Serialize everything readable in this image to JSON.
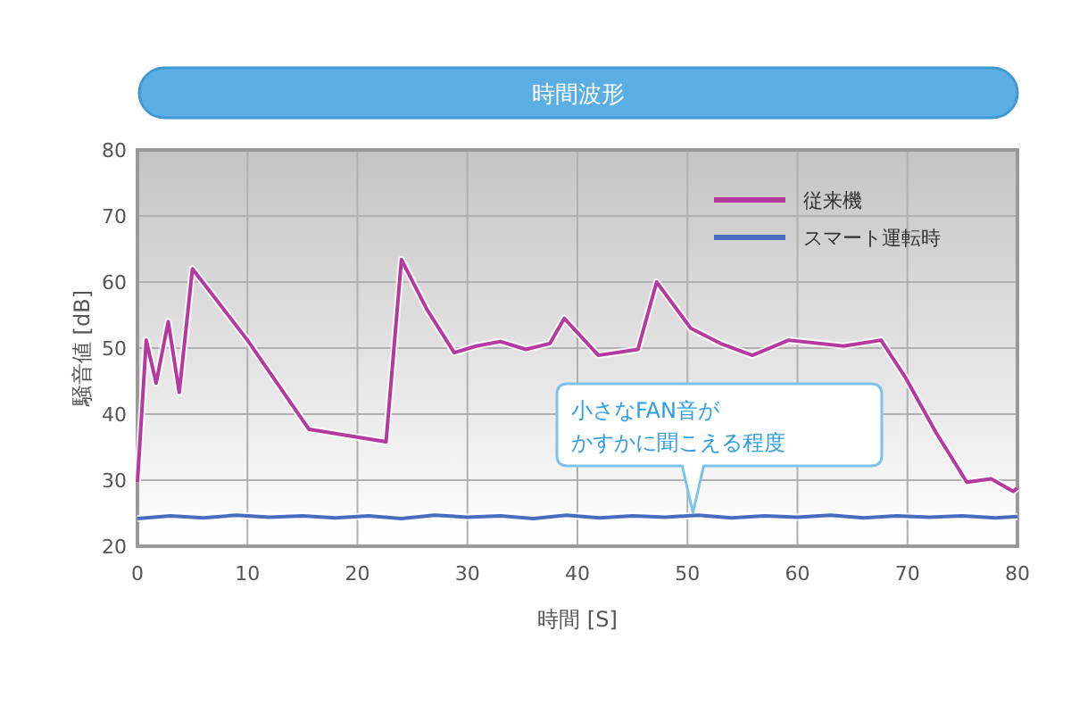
{
  "chart_data": {
    "type": "line",
    "title": "時間波形",
    "xlabel": "時間 [S]",
    "ylabel": "騒音値 [dB]",
    "xlim": [
      0,
      80
    ],
    "ylim": [
      20,
      80
    ],
    "xticks": [
      0,
      10,
      20,
      30,
      40,
      50,
      60,
      70,
      80
    ],
    "yticks": [
      20,
      30,
      40,
      50,
      60,
      70,
      80
    ],
    "grid": true,
    "legend": "top right",
    "series": [
      {
        "name": "従来機",
        "color": "#b5399e",
        "x": [
          0,
          0.8,
          1.7,
          2.8,
          3.8,
          5,
          10,
          15.6,
          22.6,
          24,
          26.3,
          28.8,
          30.8,
          33,
          35.3,
          37.5,
          38.8,
          41.9,
          45.5,
          47.2,
          50.3,
          53,
          55.9,
          59.2,
          64.2,
          67.6,
          69.8,
          72.6,
          75.4,
          77.6,
          79.6,
          80
        ],
        "values": [
          29.7,
          51.2,
          44.7,
          54,
          43.3,
          62,
          51.2,
          37.7,
          35.8,
          63.4,
          55.9,
          49.3,
          50.3,
          51,
          49.8,
          50.7,
          54.5,
          48.9,
          49.8,
          60,
          53,
          50.7,
          48.9,
          51.2,
          50.3,
          51.2,
          45.6,
          37.2,
          29.7,
          30.2,
          28.3,
          28.8
        ]
      },
      {
        "name": "スマート運転時",
        "color": "#4a6cc0",
        "x": [
          0,
          3,
          6,
          9,
          12,
          15,
          18,
          21,
          24,
          27,
          30,
          33,
          36,
          39,
          42,
          45,
          48,
          51,
          54,
          57,
          60,
          63,
          66,
          69,
          72,
          75,
          78,
          80
        ],
        "values": [
          24.2,
          24.6,
          24.3,
          24.7,
          24.4,
          24.6,
          24.3,
          24.6,
          24.2,
          24.7,
          24.4,
          24.6,
          24.2,
          24.7,
          24.3,
          24.6,
          24.4,
          24.7,
          24.3,
          24.6,
          24.4,
          24.7,
          24.3,
          24.6,
          24.4,
          24.6,
          24.3,
          24.5
        ]
      }
    ],
    "annotations": [
      {
        "text": "小さなFAN音がかすかに聞こえる程度",
        "x": 50.5,
        "y": 24.5
      }
    ]
  }
}
